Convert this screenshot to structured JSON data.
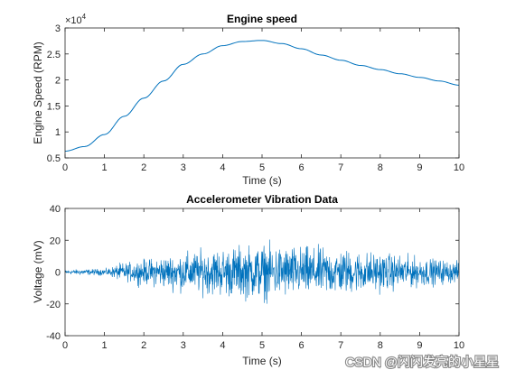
{
  "chart_data": [
    {
      "type": "line",
      "title": "Engine speed",
      "xlabel": "Time (s)",
      "ylabel": "Engine Speed (RPM)",
      "xlim": [
        0,
        10
      ],
      "ylim": [
        0.5,
        3
      ],
      "y_exponent_label": "×10",
      "y_exponent_value": "4",
      "xticks": [
        0,
        1,
        2,
        3,
        4,
        5,
        6,
        7,
        8,
        9,
        10
      ],
      "yticks": [
        0.5,
        1,
        1.5,
        2,
        2.5,
        3
      ],
      "ytick_labels": [
        "0.5",
        "1",
        "1.5",
        "2",
        "2.5",
        "3"
      ],
      "color": "#0072BD",
      "grid": false,
      "series": [
        {
          "x": [
            0,
            0.5,
            1,
            1.5,
            2,
            2.5,
            3,
            3.5,
            4,
            4.5,
            5,
            5.5,
            6,
            6.5,
            7,
            7.5,
            8,
            8.5,
            9,
            9.5,
            10
          ],
          "y": [
            0.63,
            0.72,
            0.95,
            1.3,
            1.65,
            1.98,
            2.3,
            2.5,
            2.66,
            2.74,
            2.76,
            2.7,
            2.6,
            2.48,
            2.38,
            2.28,
            2.2,
            2.12,
            2.05,
            1.98,
            1.9
          ]
        }
      ]
    },
    {
      "type": "line",
      "title": "Accelerometer Vibration Data",
      "xlabel": "Time (s)",
      "ylabel": "Voltage (mV)",
      "xlim": [
        0,
        10
      ],
      "ylim": [
        -40,
        40
      ],
      "xticks": [
        0,
        1,
        2,
        3,
        4,
        5,
        6,
        7,
        8,
        9,
        10
      ],
      "yticks": [
        -40,
        -20,
        0,
        20,
        40
      ],
      "ytick_labels": [
        "-40",
        "-20",
        "0",
        "20",
        "40"
      ],
      "color": "#0072BD",
      "grid": false,
      "envelope": {
        "x": [
          0,
          0.5,
          1,
          1.5,
          2,
          2.5,
          3,
          3.5,
          4,
          4.5,
          5,
          5.5,
          6,
          6.5,
          7,
          7.5,
          8,
          8.5,
          9,
          9.5,
          10
        ],
        "amplitude": [
          2,
          2.5,
          3,
          8,
          11,
          14,
          17,
          19,
          21,
          23,
          24,
          23,
          22,
          21,
          20,
          18,
          17,
          15,
          13,
          11,
          9
        ]
      },
      "samples": 1400
    }
  ],
  "watermark": "CSDN @闪闪发亮的小星星"
}
